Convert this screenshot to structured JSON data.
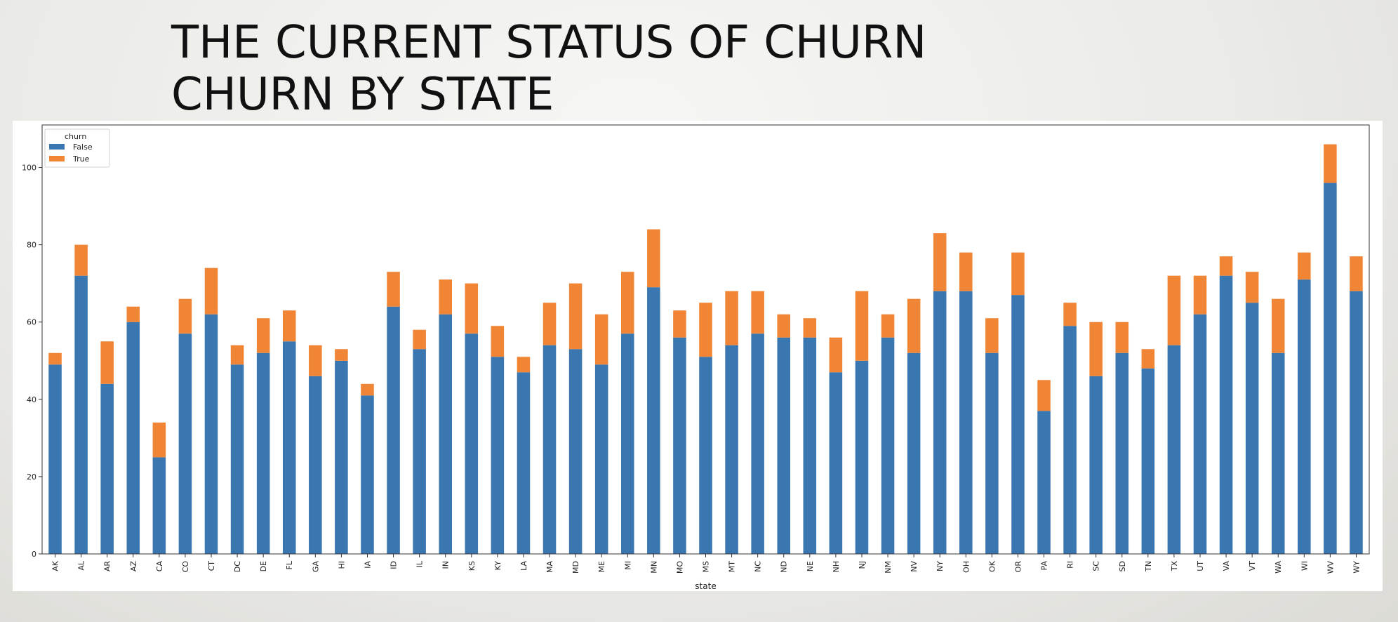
{
  "slide": {
    "title_line1": "THE CURRENT STATUS OF CHURN",
    "title_line2": "CHURN BY STATE"
  },
  "colors": {
    "false": "#3a76b0",
    "true": "#f08536"
  },
  "chart_data": {
    "type": "bar",
    "stacked": true,
    "title": "",
    "xlabel": "state",
    "ylabel": "",
    "ylim": [
      0,
      111
    ],
    "yticks": [
      0,
      20,
      40,
      60,
      80,
      100
    ],
    "legend": {
      "title": "churn",
      "placement": "top-left"
    },
    "categories": [
      "AK",
      "AL",
      "AR",
      "AZ",
      "CA",
      "CO",
      "CT",
      "DC",
      "DE",
      "FL",
      "GA",
      "HI",
      "IA",
      "ID",
      "IL",
      "IN",
      "KS",
      "KY",
      "LA",
      "MA",
      "MD",
      "ME",
      "MI",
      "MN",
      "MO",
      "MS",
      "MT",
      "NC",
      "ND",
      "NE",
      "NH",
      "NJ",
      "NM",
      "NV",
      "NY",
      "OH",
      "OK",
      "OR",
      "PA",
      "RI",
      "SC",
      "SD",
      "TN",
      "TX",
      "UT",
      "VA",
      "VT",
      "WA",
      "WI",
      "WV",
      "WY"
    ],
    "series": [
      {
        "name": "False",
        "values": [
          49,
          72,
          44,
          60,
          25,
          57,
          62,
          49,
          52,
          55,
          46,
          50,
          41,
          64,
          53,
          62,
          57,
          51,
          47,
          54,
          53,
          49,
          57,
          69,
          56,
          51,
          54,
          57,
          56,
          56,
          47,
          50,
          56,
          52,
          68,
          68,
          52,
          67,
          37,
          59,
          46,
          52,
          48,
          54,
          62,
          72,
          65,
          52,
          71,
          96,
          68
        ]
      },
      {
        "name": "True",
        "values": [
          3,
          8,
          11,
          4,
          9,
          9,
          12,
          5,
          9,
          8,
          8,
          3,
          3,
          9,
          5,
          9,
          13,
          8,
          4,
          11,
          17,
          13,
          16,
          15,
          7,
          14,
          14,
          11,
          6,
          5,
          9,
          18,
          6,
          14,
          15,
          10,
          9,
          11,
          8,
          6,
          14,
          8,
          5,
          18,
          10,
          5,
          8,
          14,
          7,
          10,
          9
        ]
      }
    ]
  }
}
